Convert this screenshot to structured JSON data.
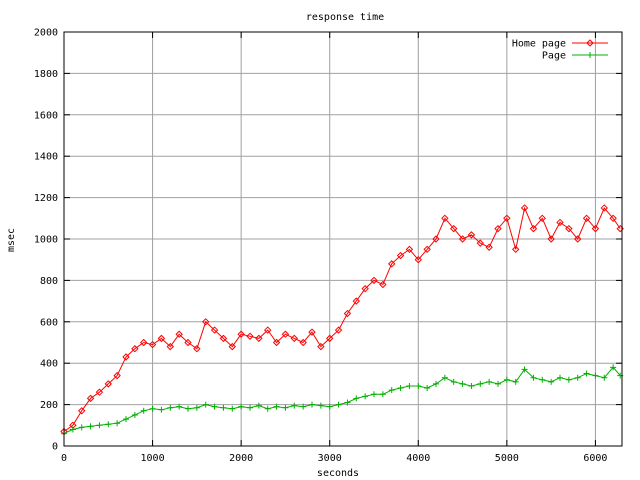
{
  "chart_data": {
    "type": "line",
    "title": "response time",
    "xlabel": "seconds",
    "ylabel": "msec",
    "xlim": [
      0,
      6300
    ],
    "ylim": [
      0,
      2000
    ],
    "xticks": [
      0,
      1000,
      2000,
      3000,
      4000,
      5000,
      6000
    ],
    "yticks": [
      0,
      200,
      400,
      600,
      800,
      1000,
      1200,
      1400,
      1600,
      1800,
      2000
    ],
    "grid": true,
    "legend_position": "top-right",
    "series": [
      {
        "name": "Home page",
        "color": "#ff0000",
        "marker": "diamond",
        "x": [
          0,
          100,
          200,
          300,
          400,
          500,
          600,
          700,
          800,
          900,
          1000,
          1100,
          1200,
          1300,
          1400,
          1500,
          1600,
          1700,
          1800,
          1900,
          2000,
          2100,
          2200,
          2300,
          2400,
          2500,
          2600,
          2700,
          2800,
          2900,
          3000,
          3100,
          3200,
          3300,
          3400,
          3500,
          3600,
          3700,
          3800,
          3900,
          4000,
          4100,
          4200,
          4300,
          4400,
          4500,
          4600,
          4700,
          4800,
          4900,
          5000,
          5100,
          5200,
          5300,
          5400,
          5500,
          5600,
          5700,
          5800,
          5900,
          6000,
          6100,
          6200,
          6280
        ],
        "y": [
          70,
          100,
          170,
          230,
          260,
          300,
          340,
          430,
          470,
          500,
          490,
          520,
          480,
          540,
          500,
          470,
          600,
          560,
          520,
          480,
          540,
          530,
          520,
          560,
          500,
          540,
          520,
          500,
          550,
          480,
          520,
          560,
          640,
          700,
          760,
          800,
          780,
          880,
          920,
          950,
          900,
          950,
          1000,
          1100,
          1050,
          1000,
          1020,
          980,
          960,
          1050,
          1100,
          950,
          1150,
          1050,
          1100,
          1000,
          1080,
          1050,
          1000,
          1100,
          1050,
          1150,
          1100,
          1050
        ]
      },
      {
        "name": "Page",
        "color": "#00b000",
        "marker": "plus",
        "x": [
          0,
          100,
          200,
          300,
          400,
          500,
          600,
          700,
          800,
          900,
          1000,
          1100,
          1200,
          1300,
          1400,
          1500,
          1600,
          1700,
          1800,
          1900,
          2000,
          2100,
          2200,
          2300,
          2400,
          2500,
          2600,
          2700,
          2800,
          2900,
          3000,
          3100,
          3200,
          3300,
          3400,
          3500,
          3600,
          3700,
          3800,
          3900,
          4000,
          4100,
          4200,
          4300,
          4400,
          4500,
          4600,
          4700,
          4800,
          4900,
          5000,
          5100,
          5200,
          5300,
          5400,
          5500,
          5600,
          5700,
          5800,
          5900,
          6000,
          6100,
          6200,
          6280
        ],
        "y": [
          60,
          80,
          90,
          95,
          100,
          105,
          110,
          130,
          150,
          170,
          180,
          175,
          185,
          190,
          180,
          185,
          200,
          190,
          185,
          180,
          190,
          185,
          195,
          180,
          190,
          185,
          195,
          190,
          200,
          195,
          190,
          200,
          210,
          230,
          240,
          250,
          250,
          270,
          280,
          290,
          290,
          280,
          300,
          330,
          310,
          300,
          290,
          300,
          310,
          300,
          320,
          310,
          370,
          330,
          320,
          310,
          330,
          320,
          330,
          350,
          340,
          330,
          380,
          340
        ]
      }
    ]
  }
}
